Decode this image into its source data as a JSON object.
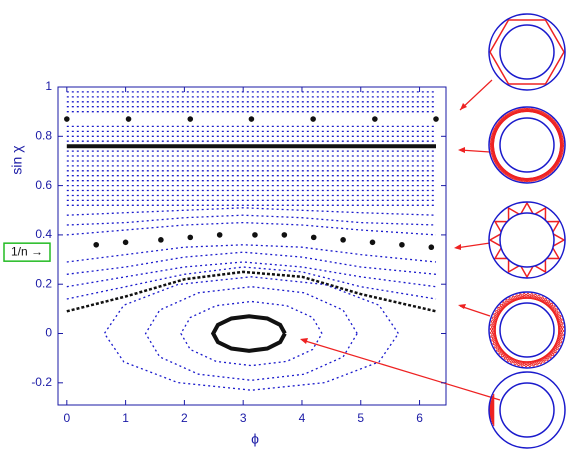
{
  "chart_data": {
    "type": "scatter",
    "x_label": "ϕ",
    "y_label": "sin χ",
    "annotation": "1/n →",
    "annotation_y": 0.33,
    "xlim": [
      -0.15,
      6.45
    ],
    "ylim": [
      -0.29,
      1
    ],
    "xticks": [
      0,
      1,
      2,
      3,
      4,
      5,
      6
    ],
    "yticks": [
      -0.2,
      0,
      0.2,
      0.4,
      0.6,
      0.8,
      1
    ],
    "series": [
      {
        "color": "#1a1acc",
        "style": "dashed",
        "x": [
          0,
          6.28
        ],
        "values": [
          0.98,
          0.98
        ]
      },
      {
        "color": "#1a1acc",
        "style": "dashed",
        "x": [
          0,
          6.28
        ],
        "values": [
          0.96,
          0.96
        ]
      },
      {
        "color": "#1a1acc",
        "style": "dashed",
        "x": [
          0,
          6.28
        ],
        "values": [
          0.94,
          0.94
        ]
      },
      {
        "color": "#1a1acc",
        "style": "dashed",
        "x": [
          0,
          6.28
        ],
        "values": [
          0.92,
          0.92
        ]
      },
      {
        "color": "#1a1acc",
        "style": "dashed",
        "x": [
          0,
          6.28
        ],
        "values": [
          0.9,
          0.9
        ]
      },
      {
        "color": "#1a1acc",
        "style": "dashed",
        "x": [
          0,
          6.28
        ],
        "values": [
          0.84,
          0.84
        ]
      },
      {
        "color": "#1a1acc",
        "style": "dashed",
        "x": [
          0,
          6.28
        ],
        "values": [
          0.82,
          0.82
        ]
      },
      {
        "color": "#1a1acc",
        "style": "dashed",
        "x": [
          0,
          6.28
        ],
        "values": [
          0.8,
          0.8
        ]
      },
      {
        "color": "#1a1acc",
        "style": "dashed",
        "x": [
          0,
          6.28
        ],
        "values": [
          0.78,
          0.78
        ]
      },
      {
        "color": "#1a1acc",
        "style": "dashed",
        "x": [
          0,
          6.28
        ],
        "values": [
          0.74,
          0.74
        ]
      },
      {
        "color": "#1a1acc",
        "style": "dashed",
        "x": [
          0,
          6.28
        ],
        "values": [
          0.72,
          0.72
        ]
      },
      {
        "color": "#1a1acc",
        "style": "dashed",
        "x": [
          0,
          6.28
        ],
        "values": [
          0.7,
          0.7
        ]
      },
      {
        "color": "#1a1acc",
        "style": "dashed",
        "x": [
          0,
          6.28
        ],
        "values": [
          0.68,
          0.68
        ]
      },
      {
        "color": "#1a1acc",
        "style": "dashed",
        "x": [
          0,
          6.28
        ],
        "values": [
          0.66,
          0.66
        ]
      },
      {
        "color": "#1a1acc",
        "style": "dashed",
        "x": [
          0,
          6.28
        ],
        "values": [
          0.64,
          0.64
        ]
      },
      {
        "color": "#1a1acc",
        "style": "dashed",
        "x": [
          0,
          6.28
        ],
        "values": [
          0.62,
          0.62
        ]
      },
      {
        "color": "#1a1acc",
        "style": "dashed",
        "x": [
          0,
          6.28
        ],
        "values": [
          0.6,
          0.6
        ]
      },
      {
        "color": "#1a1acc",
        "style": "dashed",
        "x": [
          0,
          6.28
        ],
        "values": [
          0.58,
          0.58
        ]
      },
      {
        "color": "#1a1acc",
        "style": "dashed",
        "x": [
          0,
          6.28
        ],
        "values": [
          0.56,
          0.56
        ]
      },
      {
        "color": "#1a1acc",
        "style": "dashed",
        "x": [
          0,
          6.28
        ],
        "values": [
          0.54,
          0.54
        ]
      },
      {
        "color": "#1a1acc",
        "style": "dashed",
        "x": [
          0,
          6.28
        ],
        "values": [
          0.52,
          0.52
        ]
      },
      {
        "color": "#1a1acc",
        "style": "dashed",
        "x": [
          0,
          1,
          2,
          3,
          4,
          5,
          6.28
        ],
        "values": [
          0.48,
          0.49,
          0.5,
          0.51,
          0.5,
          0.49,
          0.48
        ]
      },
      {
        "color": "#1a1acc",
        "style": "dashed",
        "x": [
          0,
          1,
          2,
          3,
          4,
          5,
          6.28
        ],
        "values": [
          0.44,
          0.45,
          0.47,
          0.48,
          0.47,
          0.45,
          0.44
        ]
      },
      {
        "color": "#1a1acc",
        "style": "dashed",
        "x": [
          0,
          1,
          2,
          3,
          4,
          5,
          6.28
        ],
        "values": [
          0.4,
          0.42,
          0.44,
          0.45,
          0.44,
          0.42,
          0.4
        ]
      },
      {
        "color": "#1a1acc",
        "style": "dashed",
        "x": [
          0,
          1,
          2,
          3,
          4,
          5,
          6.28
        ],
        "values": [
          0.29,
          0.32,
          0.35,
          0.36,
          0.35,
          0.32,
          0.29
        ]
      },
      {
        "color": "#1a1acc",
        "style": "dashed",
        "x": [
          0,
          1,
          2,
          3,
          4,
          5,
          6.28
        ],
        "values": [
          0.24,
          0.27,
          0.31,
          0.33,
          0.31,
          0.27,
          0.24
        ]
      },
      {
        "color": "#1a1acc",
        "style": "dashed",
        "x": [
          0,
          1,
          2,
          3,
          4,
          5,
          6.28
        ],
        "values": [
          0.19,
          0.23,
          0.27,
          0.29,
          0.27,
          0.23,
          0.19
        ]
      },
      {
        "color": "#1a1acc",
        "style": "dashed",
        "x": [
          0,
          1,
          2,
          3,
          4,
          5,
          6.28
        ],
        "values": [
          0.14,
          0.19,
          0.24,
          0.27,
          0.25,
          0.19,
          0.14
        ]
      },
      {
        "color": "#111111",
        "style": "dots",
        "x": [
          0,
          1.05,
          2.1,
          3.14,
          4.19,
          5.24,
          6.28
        ],
        "values": [
          0.87,
          0.87,
          0.87,
          0.87,
          0.87,
          0.87,
          0.87
        ]
      },
      {
        "color": "#111111",
        "style": "solid",
        "x": [
          0,
          6.28
        ],
        "values": [
          0.76,
          0.76
        ]
      },
      {
        "color": "#111111",
        "style": "dots",
        "x": [
          0.5,
          1.0,
          1.6,
          2.1,
          2.6,
          3.2,
          3.7,
          4.2,
          4.7,
          5.2,
          5.7,
          6.2
        ],
        "values": [
          0.36,
          0.37,
          0.38,
          0.39,
          0.4,
          0.4,
          0.4,
          0.39,
          0.38,
          0.37,
          0.36,
          0.35
        ]
      },
      {
        "color": "#111111",
        "style": "dotline",
        "x": [
          0,
          1,
          2,
          3,
          4,
          5,
          6.28
        ],
        "values": [
          0.09,
          0.15,
          0.22,
          0.25,
          0.23,
          0.16,
          0.09
        ]
      },
      {
        "color": "#1a1acc",
        "style": "dashed",
        "x": [
          5.64,
          5.31,
          4.39,
          3.14,
          1.89,
          0.97,
          0.64,
          0.97,
          1.89,
          3.14,
          4.39,
          5.31,
          5.64
        ],
        "values": [
          0,
          0.115,
          0.199,
          0.23,
          0.199,
          0.115,
          0,
          -0.115,
          -0.199,
          -0.23,
          -0.199,
          -0.115,
          0
        ]
      },
      {
        "color": "#1a1acc",
        "style": "dashed",
        "x": [
          4.94,
          4.7,
          4.04,
          3.14,
          2.24,
          1.58,
          1.34,
          1.58,
          2.24,
          3.14,
          4.04,
          4.7,
          4.94
        ],
        "values": [
          0,
          0.095,
          0.165,
          0.19,
          0.165,
          0.095,
          0,
          -0.095,
          -0.165,
          -0.19,
          -0.165,
          -0.095,
          0
        ]
      },
      {
        "color": "#1a1acc",
        "style": "dashed",
        "x": [
          4.34,
          4.18,
          3.74,
          3.14,
          2.54,
          2.1,
          1.94,
          2.1,
          2.54,
          3.14,
          3.74,
          4.18,
          4.34
        ],
        "values": [
          0,
          0.065,
          0.113,
          0.13,
          0.113,
          0.065,
          0,
          -0.065,
          -0.113,
          -0.13,
          -0.113,
          -0.065,
          0
        ]
      },
      {
        "color": "#111111",
        "style": "solid",
        "x": [
          3.71,
          3.63,
          3.41,
          3.1,
          2.8,
          2.57,
          2.49,
          2.57,
          2.8,
          3.1,
          3.41,
          3.63,
          3.71
        ],
        "values": [
          0,
          0.035,
          0.061,
          0.07,
          0.061,
          0.035,
          0,
          -0.035,
          -0.061,
          -0.07,
          -0.061,
          -0.035,
          0
        ]
      }
    ]
  }
}
